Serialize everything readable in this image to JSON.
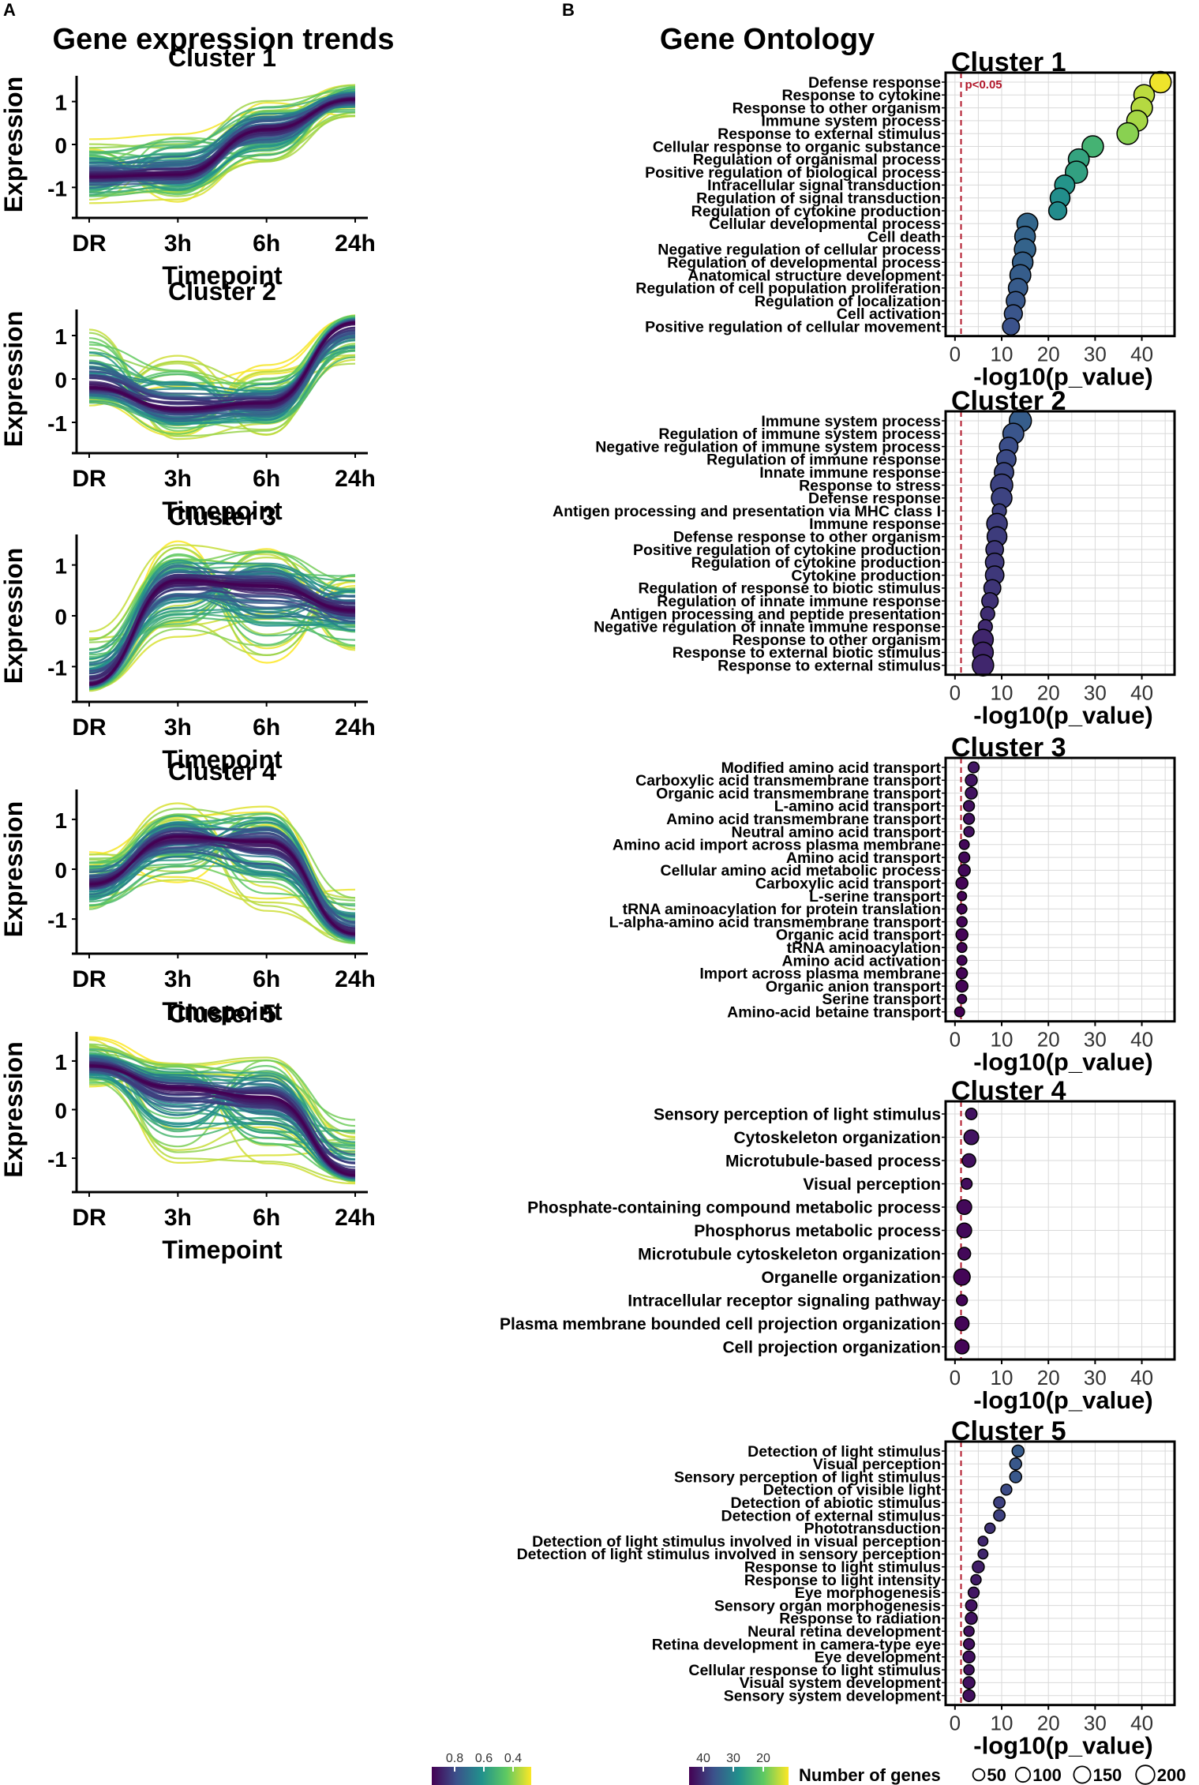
{
  "panel_a_label": "A",
  "panel_b_label": "B",
  "chart_data": [
    {
      "panel": "A",
      "type": "line",
      "title": "Gene expression trends",
      "xlabel": "Timepoint",
      "ylabel": "Expression",
      "x": [
        "DR",
        "3h",
        "6h",
        "24h"
      ],
      "yticks": [
        "1",
        "0",
        "-1"
      ],
      "clusters": [
        {
          "name": "Cluster 1",
          "center": [
            -0.75,
            -0.7,
            0.35,
            1.05
          ],
          "lo": [
            -1.45,
            -1.45,
            -0.6,
            0.6
          ],
          "hi": [
            0.15,
            0.5,
            1.2,
            1.5
          ],
          "ylim": [
            -1.6,
            1.6
          ]
        },
        {
          "name": "Cluster 2",
          "center": [
            -0.2,
            -0.7,
            -0.55,
            1.3
          ],
          "lo": [
            -0.75,
            -1.45,
            -1.45,
            0.1
          ],
          "hi": [
            1.4,
            0.65,
            0.35,
            1.5
          ],
          "ylim": [
            -1.6,
            1.6
          ]
        },
        {
          "name": "Cluster 3",
          "center": [
            -1.35,
            0.7,
            0.6,
            0.1
          ],
          "lo": [
            -1.5,
            -0.6,
            -1.05,
            -0.8
          ],
          "hi": [
            -0.2,
            1.5,
            1.5,
            1.1
          ],
          "ylim": [
            -1.6,
            1.6
          ]
        },
        {
          "name": "Cluster 4",
          "center": [
            -0.3,
            0.65,
            0.55,
            -1.3
          ],
          "lo": [
            -0.95,
            -0.4,
            -0.95,
            -1.55
          ],
          "hi": [
            0.45,
            1.4,
            1.5,
            -0.35
          ],
          "ylim": [
            -1.6,
            1.6
          ]
        },
        {
          "name": "Cluster 5",
          "center": [
            0.9,
            0.45,
            0.25,
            -1.35
          ],
          "lo": [
            0.4,
            -1.2,
            -1.25,
            -1.55
          ],
          "hi": [
            1.5,
            1.05,
            1.25,
            0.1
          ],
          "ylim": [
            -1.6,
            1.6
          ]
        }
      ],
      "legend": {
        "title": "",
        "ticks": [
          "0.8",
          "0.6",
          "0.4"
        ]
      }
    },
    {
      "panel": "B",
      "type": "scatter",
      "title": "Gene Ontology",
      "xlabel": "-log10(p_value)",
      "xlim": [
        -2,
        47
      ],
      "xticks": [
        0,
        10,
        20,
        30,
        40
      ],
      "threshold": 1.3,
      "threshold_label": "p<0.05",
      "clusters": [
        {
          "name": "Cluster 1",
          "terms": [
            {
              "term": "Defense response",
              "x": 44,
              "genes": 110
            },
            {
              "term": "Response to cytokine",
              "x": 40.5,
              "genes": 100
            },
            {
              "term": "Response to other organism",
              "x": 40,
              "genes": 110
            },
            {
              "term": "Immune system process",
              "x": 39,
              "genes": 105
            },
            {
              "term": "Response to external stimulus",
              "x": 37,
              "genes": 115
            },
            {
              "term": "Cellular response to organic substance",
              "x": 29.5,
              "genes": 110
            },
            {
              "term": "Regulation of organismal process",
              "x": 26.5,
              "genes": 105
            },
            {
              "term": "Positive regulation of biological process",
              "x": 26,
              "genes": 120
            },
            {
              "term": "Intracellular signal transduction",
              "x": 23.5,
              "genes": 95
            },
            {
              "term": "Regulation of signal transduction",
              "x": 22.5,
              "genes": 90
            },
            {
              "term": "Regulation of cytokine production",
              "x": 22,
              "genes": 70
            },
            {
              "term": "Cellular developmental process",
              "x": 15.5,
              "genes": 105
            },
            {
              "term": "Cell death",
              "x": 15,
              "genes": 100
            },
            {
              "term": "Negative regulation of cellular process",
              "x": 15,
              "genes": 110
            },
            {
              "term": "Regulation of developmental process",
              "x": 14.5,
              "genes": 100
            },
            {
              "term": "Anatomical structure development",
              "x": 14,
              "genes": 105
            },
            {
              "term": "Regulation of cell population proliferation",
              "x": 13.5,
              "genes": 85
            },
            {
              "term": "Regulation of localization",
              "x": 13,
              "genes": 80
            },
            {
              "term": "Cell activation",
              "x": 12.5,
              "genes": 70
            },
            {
              "term": "Positive regulation of cellular movement",
              "x": 12,
              "genes": 60
            }
          ]
        },
        {
          "name": "Cluster 2",
          "terms": [
            {
              "term": "Immune system process",
              "x": 14,
              "genes": 120
            },
            {
              "term": "Regulation of immune system process",
              "x": 12.5,
              "genes": 105
            },
            {
              "term": "Negative regulation of immune system process",
              "x": 11.5,
              "genes": 75
            },
            {
              "term": "Regulation of immune response",
              "x": 11,
              "genes": 85
            },
            {
              "term": "Innate immune response",
              "x": 10.5,
              "genes": 85
            },
            {
              "term": "Response to stress",
              "x": 10,
              "genes": 120
            },
            {
              "term": "Defense response",
              "x": 10,
              "genes": 100
            },
            {
              "term": "Antigen processing and presentation via MHC class I",
              "x": 9.5,
              "genes": 35
            },
            {
              "term": "Immune response",
              "x": 9,
              "genes": 100
            },
            {
              "term": "Defense response to other organism",
              "x": 9,
              "genes": 90
            },
            {
              "term": "Positive regulation of cytokine production",
              "x": 8.5,
              "genes": 65
            },
            {
              "term": "Regulation of cytokine production",
              "x": 8.5,
              "genes": 75
            },
            {
              "term": "Cytokine production",
              "x": 8.5,
              "genes": 75
            },
            {
              "term": "Regulation of response to biotic stimulus",
              "x": 8,
              "genes": 60
            },
            {
              "term": "Regulation of innate immune response",
              "x": 7.5,
              "genes": 55
            },
            {
              "term": "Antigen processing and peptide presentation",
              "x": 7,
              "genes": 35
            },
            {
              "term": "Negative regulation of innate immune response",
              "x": 6.5,
              "genes": 35
            },
            {
              "term": "Response to other organism",
              "x": 6,
              "genes": 100
            },
            {
              "term": "Response to external biotic stimulus",
              "x": 6,
              "genes": 100
            },
            {
              "term": "Response to external stimulus",
              "x": 6,
              "genes": 110
            }
          ]
        },
        {
          "name": "Cluster 3",
          "terms": [
            {
              "term": "Modified amino acid transport",
              "x": 4,
              "genes": 15
            },
            {
              "term": "Carboxylic acid transmembrane transport",
              "x": 3.5,
              "genes": 20
            },
            {
              "term": "Organic acid transmembrane transport",
              "x": 3.5,
              "genes": 20
            },
            {
              "term": "L-amino acid transport",
              "x": 3,
              "genes": 15
            },
            {
              "term": "Amino acid transmembrane transport",
              "x": 3,
              "genes": 15
            },
            {
              "term": "Neutral amino acid transport",
              "x": 3,
              "genes": 12
            },
            {
              "term": "Amino acid import across plasma membrane",
              "x": 2,
              "genes": 10
            },
            {
              "term": "Amino acid transport",
              "x": 2,
              "genes": 15
            },
            {
              "term": "Cellular amino acid metabolic process",
              "x": 2,
              "genes": 20
            },
            {
              "term": "Carboxylic acid transport",
              "x": 1.5,
              "genes": 20
            },
            {
              "term": "L-serine transport",
              "x": 1.5,
              "genes": 8
            },
            {
              "term": "tRNA aminoacylation for protein translation",
              "x": 1.5,
              "genes": 10
            },
            {
              "term": "L-alpha-amino acid transmembrane transport",
              "x": 1.5,
              "genes": 12
            },
            {
              "term": "Organic acid transport",
              "x": 1.5,
              "genes": 20
            },
            {
              "term": "tRNA aminoacylation",
              "x": 1.5,
              "genes": 10
            },
            {
              "term": "Amino acid activation",
              "x": 1.5,
              "genes": 10
            },
            {
              "term": "Import across plasma membrane",
              "x": 1.5,
              "genes": 15
            },
            {
              "term": "Organic anion transport",
              "x": 1.5,
              "genes": 20
            },
            {
              "term": "Serine transport",
              "x": 1.5,
              "genes": 8
            },
            {
              "term": "Amino-acid betaine transport",
              "x": 1,
              "genes": 10
            }
          ]
        },
        {
          "name": "Cluster 4",
          "terms": [
            {
              "term": "Sensory perception of light stimulus",
              "x": 3.5,
              "genes": 18
            },
            {
              "term": "Cytoskeleton organization",
              "x": 3.5,
              "genes": 40
            },
            {
              "term": "Microtubule-based process",
              "x": 3,
              "genes": 30
            },
            {
              "term": "Visual perception",
              "x": 2.5,
              "genes": 15
            },
            {
              "term": "Phosphate-containing compound metabolic process",
              "x": 2,
              "genes": 40
            },
            {
              "term": "Phosphorus metabolic process",
              "x": 2,
              "genes": 40
            },
            {
              "term": "Microtubule cytoskeleton organization",
              "x": 2,
              "genes": 25
            },
            {
              "term": "Organelle organization",
              "x": 1.5,
              "genes": 55
            },
            {
              "term": "Intracellular receptor signaling pathway",
              "x": 1.5,
              "genes": 15
            },
            {
              "term": "Plasma membrane bounded cell projection organization",
              "x": 1.5,
              "genes": 35
            },
            {
              "term": "Cell projection organization",
              "x": 1.5,
              "genes": 35
            }
          ]
        },
        {
          "name": "Cluster 5",
          "terms": [
            {
              "term": "Detection of light stimulus",
              "x": 13.5,
              "genes": 20
            },
            {
              "term": "Visual perception",
              "x": 13,
              "genes": 20
            },
            {
              "term": "Sensory perception of light stimulus",
              "x": 13,
              "genes": 20
            },
            {
              "term": "Detection of visible light",
              "x": 11,
              "genes": 15
            },
            {
              "term": "Detection of abiotic stimulus",
              "x": 9.5,
              "genes": 18
            },
            {
              "term": "Detection of external stimulus",
              "x": 9.5,
              "genes": 18
            },
            {
              "term": "Phototransduction",
              "x": 7.5,
              "genes": 12
            },
            {
              "term": "Detection of light stimulus involved in visual perception",
              "x": 6,
              "genes": 10
            },
            {
              "term": "Detection of light stimulus involved in sensory perception",
              "x": 6,
              "genes": 10
            },
            {
              "term": "Response to light stimulus",
              "x": 5,
              "genes": 20
            },
            {
              "term": "Response to light intensity",
              "x": 4.5,
              "genes": 12
            },
            {
              "term": "Eye morphogenesis",
              "x": 4,
              "genes": 15
            },
            {
              "term": "Sensory organ morphogenesis",
              "x": 3.5,
              "genes": 18
            },
            {
              "term": "Response to radiation",
              "x": 3.5,
              "genes": 20
            },
            {
              "term": "Neural retina development",
              "x": 3,
              "genes": 12
            },
            {
              "term": "Retina development in camera-type eye",
              "x": 3,
              "genes": 15
            },
            {
              "term": "Eye development",
              "x": 3,
              "genes": 20
            },
            {
              "term": "Cellular response to light stimulus",
              "x": 3,
              "genes": 12
            },
            {
              "term": "Visual system development",
              "x": 3,
              "genes": 20
            },
            {
              "term": "Sensory system development",
              "x": 3,
              "genes": 20
            }
          ]
        }
      ],
      "color_legend": {
        "ticks": [
          "40",
          "30",
          "20"
        ]
      },
      "size_legend": {
        "title": "Number of genes",
        "values": [
          50,
          100,
          150,
          200
        ]
      }
    }
  ]
}
